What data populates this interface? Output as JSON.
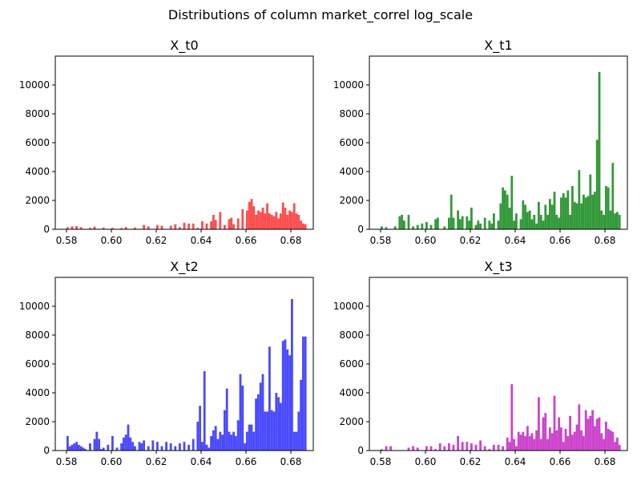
{
  "figure": {
    "title": "Distributions of column market_correl log_scale"
  },
  "chart_data": [
    {
      "type": "bar",
      "title": "X_t0",
      "color": "#ff4d4d",
      "xlim": [
        0.575,
        0.69
      ],
      "ylim": [
        0,
        12000
      ],
      "xticks": [
        "0.58",
        "0.60",
        "0.62",
        "0.64",
        "0.66",
        "0.68"
      ],
      "yticks": [
        "0",
        "2000",
        "4000",
        "6000",
        "8000",
        "10000"
      ],
      "x": [
        0.58,
        0.582,
        0.584,
        0.586,
        0.59,
        0.592,
        0.596,
        0.6,
        0.604,
        0.606,
        0.61,
        0.614,
        0.616,
        0.62,
        0.622,
        0.626,
        0.628,
        0.63,
        0.632,
        0.634,
        0.636,
        0.638,
        0.64,
        0.642,
        0.644,
        0.645,
        0.646,
        0.648,
        0.65,
        0.652,
        0.653,
        0.654,
        0.656,
        0.658,
        0.66,
        0.661,
        0.662,
        0.663,
        0.664,
        0.665,
        0.666,
        0.667,
        0.668,
        0.669,
        0.67,
        0.671,
        0.672,
        0.673,
        0.674,
        0.675,
        0.676,
        0.677,
        0.678,
        0.679,
        0.68,
        0.681,
        0.682,
        0.683,
        0.684,
        0.685,
        0.686
      ],
      "values": [
        150,
        200,
        220,
        150,
        100,
        180,
        120,
        100,
        80,
        150,
        120,
        300,
        200,
        300,
        250,
        250,
        350,
        150,
        450,
        400,
        400,
        100,
        550,
        400,
        550,
        1000,
        650,
        1200,
        300,
        700,
        800,
        350,
        750,
        1400,
        1300,
        1900,
        2100,
        1600,
        1000,
        1300,
        1200,
        1500,
        1100,
        1800,
        1100,
        1000,
        900,
        1200,
        750,
        1100,
        1850,
        1500,
        1000,
        1300,
        1200,
        1800,
        1100,
        1000,
        600,
        400,
        350
      ]
    },
    {
      "type": "bar",
      "title": "X_t1",
      "color": "#33993a",
      "xlim": [
        0.575,
        0.69
      ],
      "ylim": [
        0,
        12000
      ],
      "xticks": [
        "0.58",
        "0.60",
        "0.62",
        "0.64",
        "0.66",
        "0.68"
      ],
      "yticks": [
        "0",
        "2000",
        "4000",
        "6000",
        "8000",
        "10000"
      ],
      "x": [
        0.58,
        0.582,
        0.586,
        0.588,
        0.589,
        0.59,
        0.592,
        0.594,
        0.596,
        0.598,
        0.6,
        0.602,
        0.604,
        0.605,
        0.608,
        0.61,
        0.611,
        0.612,
        0.614,
        0.615,
        0.616,
        0.618,
        0.619,
        0.62,
        0.622,
        0.623,
        0.624,
        0.626,
        0.628,
        0.629,
        0.63,
        0.632,
        0.633,
        0.634,
        0.635,
        0.636,
        0.637,
        0.638,
        0.639,
        0.64,
        0.642,
        0.643,
        0.644,
        0.645,
        0.646,
        0.647,
        0.648,
        0.649,
        0.65,
        0.651,
        0.652,
        0.653,
        0.654,
        0.655,
        0.656,
        0.657,
        0.658,
        0.659,
        0.66,
        0.661,
        0.662,
        0.663,
        0.664,
        0.665,
        0.666,
        0.667,
        0.668,
        0.669,
        0.67,
        0.671,
        0.672,
        0.673,
        0.674,
        0.675,
        0.676,
        0.677,
        0.678,
        0.679,
        0.68,
        0.681,
        0.682,
        0.683,
        0.684,
        0.685,
        0.686
      ],
      "values": [
        200,
        150,
        200,
        900,
        1000,
        600,
        1000,
        200,
        300,
        400,
        500,
        300,
        700,
        800,
        200,
        800,
        2400,
        800,
        1300,
        700,
        900,
        900,
        600,
        1500,
        300,
        600,
        400,
        800,
        600,
        400,
        1100,
        600,
        1800,
        2900,
        2700,
        2400,
        1500,
        3700,
        600,
        1100,
        700,
        2000,
        1700,
        1200,
        1300,
        700,
        1000,
        400,
        1900,
        1000,
        600,
        1700,
        1000,
        2100,
        1700,
        2600,
        1000,
        800,
        2200,
        2500,
        2200,
        2700,
        1000,
        3000,
        1900,
        1800,
        4100,
        1800,
        2400,
        2200,
        2300,
        3800,
        2400,
        2600,
        6200,
        10900,
        1300,
        1000,
        3000,
        2900,
        1300,
        4600,
        1100,
        1200,
        1000
      ]
    },
    {
      "type": "bar",
      "title": "X_t2",
      "color": "#4a4aff",
      "xlim": [
        0.575,
        0.69
      ],
      "ylim": [
        0,
        12000
      ],
      "xticks": [
        "0.58",
        "0.60",
        "0.62",
        "0.64",
        "0.66",
        "0.68"
      ],
      "yticks": [
        "0",
        "2000",
        "4000",
        "6000",
        "8000",
        "10000"
      ],
      "x": [
        0.58,
        0.581,
        0.582,
        0.583,
        0.584,
        0.585,
        0.586,
        0.587,
        0.588,
        0.59,
        0.592,
        0.593,
        0.594,
        0.595,
        0.596,
        0.598,
        0.6,
        0.602,
        0.604,
        0.605,
        0.606,
        0.607,
        0.608,
        0.609,
        0.61,
        0.612,
        0.613,
        0.614,
        0.616,
        0.618,
        0.62,
        0.622,
        0.624,
        0.626,
        0.628,
        0.63,
        0.632,
        0.634,
        0.636,
        0.638,
        0.639,
        0.64,
        0.641,
        0.642,
        0.643,
        0.644,
        0.645,
        0.646,
        0.647,
        0.648,
        0.649,
        0.65,
        0.651,
        0.652,
        0.653,
        0.654,
        0.655,
        0.656,
        0.657,
        0.658,
        0.659,
        0.66,
        0.661,
        0.662,
        0.663,
        0.664,
        0.665,
        0.666,
        0.667,
        0.668,
        0.669,
        0.67,
        0.671,
        0.672,
        0.673,
        0.674,
        0.675,
        0.676,
        0.677,
        0.678,
        0.679,
        0.68,
        0.681,
        0.682,
        0.683,
        0.684,
        0.685,
        0.686
      ],
      "values": [
        1000,
        300,
        400,
        500,
        600,
        400,
        300,
        200,
        100,
        500,
        800,
        1300,
        800,
        100,
        200,
        400,
        1000,
        200,
        500,
        900,
        1100,
        1800,
        900,
        600,
        300,
        600,
        500,
        700,
        300,
        700,
        600,
        300,
        600,
        500,
        300,
        500,
        600,
        400,
        800,
        2000,
        3100,
        600,
        5500,
        400,
        200,
        1000,
        1400,
        1700,
        800,
        1300,
        1100,
        2800,
        4300,
        1300,
        1100,
        1300,
        1000,
        2100,
        5300,
        4500,
        500,
        1300,
        1800,
        1800,
        1300,
        3600,
        3900,
        4700,
        5300,
        2700,
        2700,
        7200,
        2800,
        2700,
        4000,
        3700,
        3300,
        7600,
        7700,
        7000,
        6600,
        10500,
        1300,
        1300,
        2700,
        4900,
        7900,
        7900
      ]
    },
    {
      "type": "bar",
      "title": "X_t3",
      "color": "#cc44cc",
      "xlim": [
        0.575,
        0.69
      ],
      "ylim": [
        0,
        12000
      ],
      "xticks": [
        "0.58",
        "0.60",
        "0.62",
        "0.64",
        "0.66",
        "0.68"
      ],
      "yticks": [
        "0",
        "2000",
        "4000",
        "6000",
        "8000",
        "10000"
      ],
      "x": [
        0.58,
        0.582,
        0.584,
        0.592,
        0.594,
        0.596,
        0.6,
        0.602,
        0.604,
        0.606,
        0.608,
        0.61,
        0.612,
        0.614,
        0.616,
        0.618,
        0.62,
        0.622,
        0.624,
        0.626,
        0.628,
        0.63,
        0.632,
        0.634,
        0.636,
        0.637,
        0.638,
        0.639,
        0.64,
        0.641,
        0.642,
        0.643,
        0.644,
        0.645,
        0.646,
        0.647,
        0.648,
        0.649,
        0.65,
        0.651,
        0.652,
        0.653,
        0.654,
        0.655,
        0.656,
        0.657,
        0.658,
        0.659,
        0.66,
        0.661,
        0.662,
        0.663,
        0.664,
        0.665,
        0.666,
        0.667,
        0.668,
        0.669,
        0.67,
        0.671,
        0.672,
        0.673,
        0.674,
        0.675,
        0.676,
        0.677,
        0.678,
        0.679,
        0.68,
        0.681,
        0.682,
        0.683,
        0.684,
        0.685,
        0.686
      ],
      "values": [
        100,
        300,
        300,
        200,
        300,
        200,
        300,
        300,
        100,
        500,
        300,
        500,
        400,
        1000,
        600,
        600,
        500,
        400,
        700,
        300,
        100,
        400,
        400,
        300,
        900,
        600,
        4600,
        800,
        300,
        1300,
        1100,
        1300,
        1000,
        1700,
        1000,
        1200,
        800,
        1400,
        3700,
        800,
        2300,
        2600,
        800,
        1600,
        1200,
        3800,
        1400,
        2300,
        1600,
        600,
        1500,
        1000,
        2400,
        1100,
        1300,
        1800,
        3200,
        1400,
        1000,
        2800,
        2200,
        2400,
        2800,
        1700,
        2200,
        2300,
        1200,
        800,
        2000,
        1500,
        1400,
        1300,
        600,
        900,
        400
      ]
    }
  ]
}
